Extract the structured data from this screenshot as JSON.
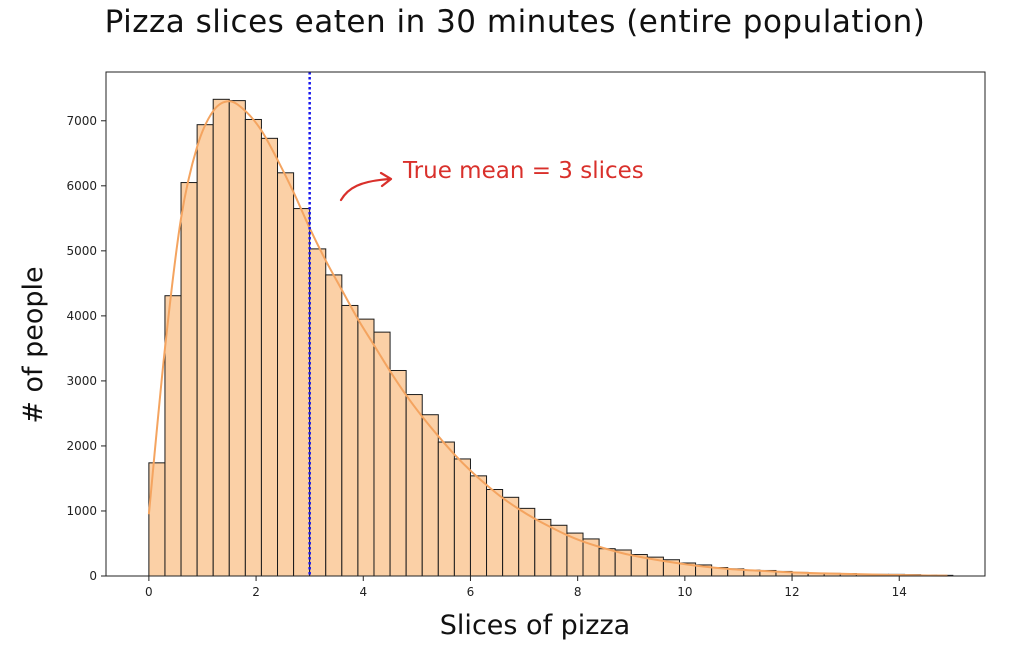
{
  "chart_data": {
    "type": "bar",
    "title": "Pizza slices eaten in 30 minutes (entire population)",
    "xlabel": "Slices of pizza",
    "ylabel": "# of people",
    "xlim": [
      -0.8,
      15.6
    ],
    "ylim": [
      0,
      7750
    ],
    "xticks": [
      0,
      2,
      4,
      6,
      8,
      10,
      12,
      14
    ],
    "yticks": [
      0,
      1000,
      2000,
      3000,
      4000,
      5000,
      6000,
      7000
    ],
    "bin_start": 0,
    "bin_width": 0.3,
    "values": [
      1740,
      4310,
      6050,
      6940,
      7330,
      7310,
      7020,
      6730,
      6200,
      5650,
      5030,
      4630,
      4160,
      3950,
      3750,
      3160,
      2790,
      2480,
      2060,
      1800,
      1540,
      1330,
      1210,
      1040,
      870,
      780,
      660,
      570,
      420,
      400,
      330,
      290,
      250,
      200,
      170,
      130,
      110,
      90,
      85,
      70,
      55,
      45,
      40,
      38,
      30,
      25,
      25,
      20,
      15,
      10
    ],
    "kde": {
      "x": [
        0,
        0.3,
        0.6,
        0.9,
        1.2,
        1.5,
        1.8,
        2.1,
        2.4,
        2.7,
        3.0,
        3.3,
        3.6,
        3.9,
        4.2,
        4.5,
        4.8,
        5.1,
        5.4,
        5.7,
        6.0,
        6.3,
        6.6,
        6.9,
        7.2,
        7.5,
        7.8,
        8.1,
        8.4,
        8.7,
        9.0,
        9.6,
        10.2,
        10.8,
        11.4,
        12.0,
        12.6,
        13.2,
        13.8,
        14.4,
        14.9
      ],
      "y": [
        950,
        3500,
        5500,
        6600,
        7150,
        7300,
        7150,
        6850,
        6400,
        5900,
        5350,
        4850,
        4400,
        3950,
        3550,
        3150,
        2780,
        2450,
        2150,
        1870,
        1620,
        1400,
        1200,
        1030,
        880,
        750,
        630,
        530,
        450,
        380,
        320,
        230,
        160,
        110,
        80,
        55,
        40,
        28,
        18,
        10,
        5
      ],
      "color": "#f4a460"
    },
    "vline": {
      "x": 3,
      "color": "#1515ee",
      "style": "dotted"
    },
    "annotation": {
      "text": "True mean = 3 slices",
      "color": "#d9302b"
    },
    "bar_fill": "#fbd0a6",
    "bar_edge": "#1a1a1a"
  }
}
